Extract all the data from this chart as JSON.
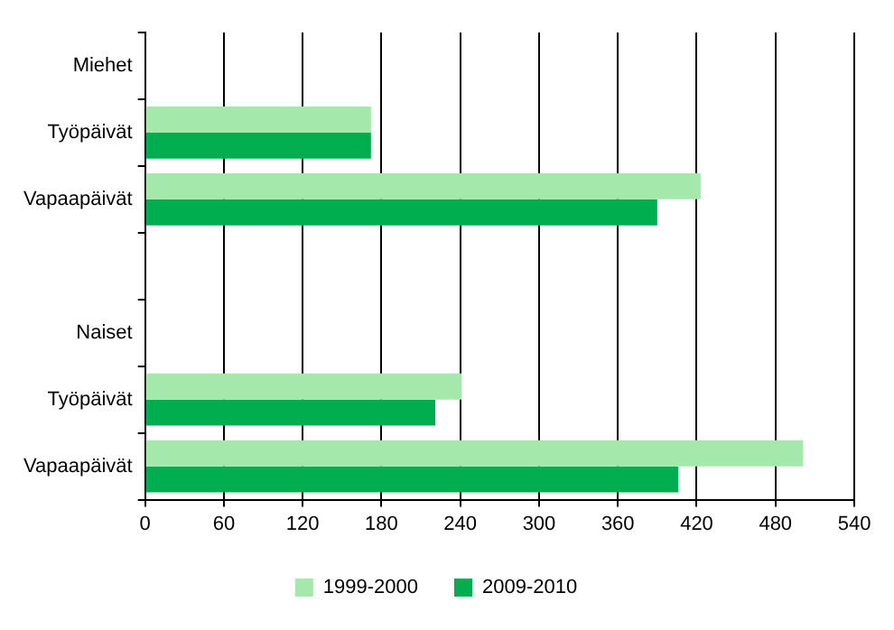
{
  "chart_data": {
    "type": "bar",
    "orientation": "horizontal",
    "categories": [
      "Miehet",
      "Työpäivät",
      "Vapaapäivät",
      null,
      "Naiset",
      "Työpäivät",
      "Vapaapäivät"
    ],
    "series": [
      {
        "name": "1999-2000",
        "color": "#a4e8ab",
        "values": [
          null,
          172,
          423,
          null,
          null,
          241,
          501
        ]
      },
      {
        "name": "2009-2010",
        "color": "#00ae4f",
        "values": [
          null,
          172,
          390,
          null,
          null,
          221,
          406
        ]
      }
    ],
    "xlim": [
      0,
      540
    ],
    "xticks": [
      0,
      60,
      120,
      180,
      240,
      300,
      360,
      420,
      480,
      540
    ],
    "grid": "x",
    "legend": "bottom"
  }
}
